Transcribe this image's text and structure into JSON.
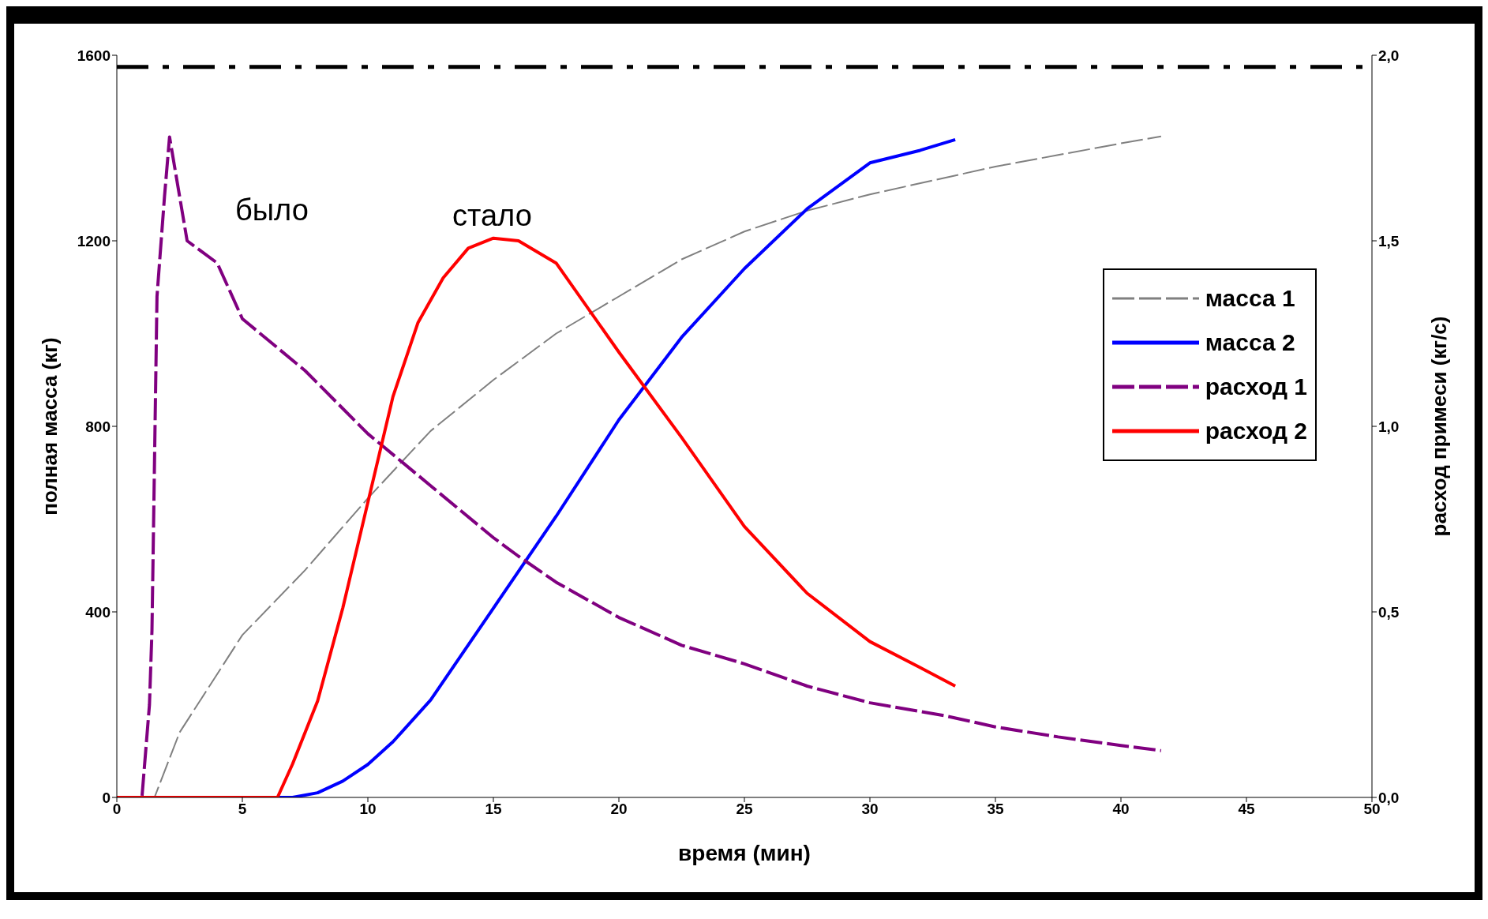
{
  "chart_data": {
    "type": "line",
    "xlabel": "время (мин)",
    "ylabel": "полная масса (кг)",
    "y2label": "расход примеси (кг/с)",
    "xlim": [
      0,
      50
    ],
    "xticks": [
      0,
      5,
      10,
      15,
      20,
      25,
      30,
      35,
      40,
      45,
      50
    ],
    "ylim": [
      0,
      1600
    ],
    "yticks": [
      0,
      400,
      800,
      1200,
      1600
    ],
    "y2lim": [
      0,
      2
    ],
    "y2ticks": [
      {
        "value": 0,
        "label": "0,0"
      },
      {
        "value": 0.5,
        "label": "0,5"
      },
      {
        "value": 1,
        "label": "1,0"
      },
      {
        "value": 1.5,
        "label": "1,5"
      },
      {
        "value": 2,
        "label": "2,0"
      }
    ],
    "grid": false,
    "legend": "top right",
    "marker": "none",
    "ref_lines": [
      {
        "axis": "y",
        "value": 1575,
        "color": "#000000",
        "line_style": "dashed"
      }
    ],
    "annotations": [
      "было",
      "стало"
    ],
    "series": [
      {
        "name": "масса 1",
        "color": "#808080",
        "line_style": "dashed",
        "x": [
          0,
          1.5,
          2.5,
          5,
          7.5,
          10,
          12.5,
          15,
          17.5,
          20,
          22.5,
          25,
          27.5,
          30,
          32.5,
          35,
          37.5,
          40,
          41.6
        ],
        "values": [
          0,
          0,
          140,
          350,
          490,
          645,
          790,
          900,
          1000,
          1080,
          1160,
          1220,
          1265,
          1300,
          1330,
          1360,
          1385,
          1410,
          1425
        ]
      },
      {
        "name": "масса 2",
        "color": "#0000ff",
        "line_style": "solid",
        "x": [
          0,
          7,
          8,
          9,
          10,
          11,
          12.5,
          15,
          17.5,
          20,
          22.5,
          25,
          27.5,
          30,
          32,
          33.4
        ],
        "values": [
          0,
          0,
          10,
          35,
          71,
          120,
          210,
          408,
          606,
          814,
          992,
          1140,
          1269,
          1368,
          1395,
          1418
        ]
      },
      {
        "name": "расход 1",
        "color": "#800080",
        "line_style": "dashed",
        "axis": "y2",
        "x": [
          0,
          1,
          1.3,
          1.4,
          1.6,
          1.9,
          2.1,
          2.5,
          2.8,
          4,
          5,
          7.5,
          10,
          12.5,
          15,
          16,
          17.5,
          20,
          22.5,
          25,
          27.5,
          30,
          33,
          35,
          37.5,
          40,
          41.6
        ],
        "values": [
          0,
          0,
          0.25,
          0.45,
          1.35,
          1.62,
          1.78,
          1.62,
          1.5,
          1.44,
          1.29,
          1.15,
          0.98,
          0.84,
          0.7,
          0.65,
          0.58,
          0.485,
          0.41,
          0.36,
          0.3,
          0.255,
          0.22,
          0.19,
          0.163,
          0.14,
          0.126
        ]
      },
      {
        "name": "расход 2",
        "color": "#ff0000",
        "line_style": "solid",
        "axis": "y2",
        "x": [
          0,
          6.4,
          7,
          8,
          9,
          10,
          11,
          12,
          13,
          14,
          15,
          16,
          17.5,
          20,
          22.5,
          25,
          27.5,
          30,
          32,
          33.4
        ],
        "values": [
          0,
          0,
          0.09,
          0.26,
          0.51,
          0.795,
          1.08,
          1.28,
          1.4,
          1.48,
          1.507,
          1.5,
          1.44,
          1.2,
          0.97,
          0.73,
          0.55,
          0.42,
          0.35,
          0.3
        ]
      }
    ]
  }
}
